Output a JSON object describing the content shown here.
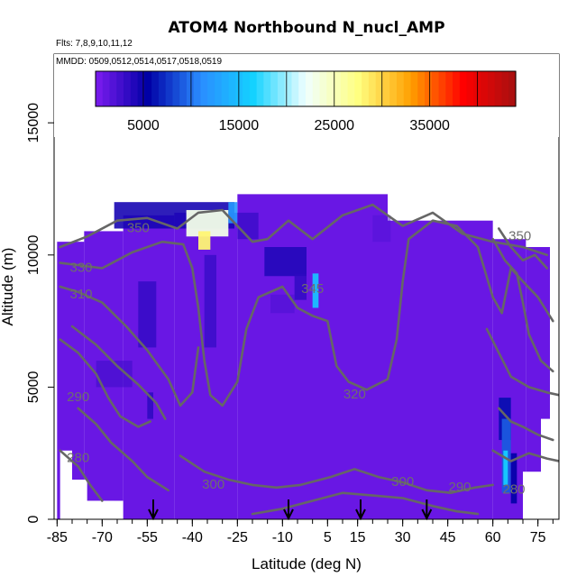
{
  "chart_data": {
    "type": "heatmap",
    "title": "ATOM4 Northbound N_nucl_AMP",
    "flights_note": "Flts: 7,8,9,10,11,12",
    "dates_note": "MMDD: 0509,0512,0514,0517,0518,0519",
    "xlabel": "Latitude (deg N)",
    "ylabel": "Altitude (m)",
    "xlim": [
      -86,
      82
    ],
    "ylim": [
      0,
      17600
    ],
    "x_ticks": [
      -85,
      -70,
      -55,
      -40,
      -25,
      -10,
      5,
      15,
      30,
      45,
      60,
      75
    ],
    "x_minor_step": 5,
    "y_ticks": [
      0,
      5000,
      10000,
      15000
    ],
    "colorbar": {
      "range": [
        0,
        44000
      ],
      "tick_values": [
        5000,
        15000,
        25000,
        35000
      ],
      "tick_labels": [
        "5000",
        "15000",
        "25000",
        "35000"
      ],
      "colors": [
        "#7d1cf0",
        "#0000a6",
        "#2a8cff",
        "#14d2ff",
        "#f0ffff",
        "#ffff80",
        "#ffa000",
        "#ff0000",
        "#a61010"
      ]
    },
    "background_value": 900,
    "arrows_lat": [
      -53,
      -8,
      16,
      38
    ],
    "contour_labels": [
      {
        "text": "350",
        "lat": -58,
        "alt": 11000
      },
      {
        "text": "330",
        "lat": -77,
        "alt": 9500
      },
      {
        "text": "310",
        "lat": -77,
        "alt": 8500
      },
      {
        "text": "345",
        "lat": 0,
        "alt": 8700
      },
      {
        "text": "350",
        "lat": 69,
        "alt": 10700
      },
      {
        "text": "290",
        "lat": -78,
        "alt": 4600
      },
      {
        "text": "320",
        "lat": 14,
        "alt": 4700
      },
      {
        "text": "280",
        "lat": -78,
        "alt": 2300
      },
      {
        "text": "300",
        "lat": -33,
        "alt": 1300
      },
      {
        "text": "300",
        "lat": 30,
        "alt": 1400
      },
      {
        "text": "290",
        "lat": 49,
        "alt": 1200
      },
      {
        "text": "280",
        "lat": 67,
        "alt": 1100
      }
    ],
    "contours": [
      [
        [
          -84,
          10300
        ],
        [
          -75,
          10700
        ],
        [
          -65,
          11300
        ],
        [
          -55,
          11400
        ],
        [
          -45,
          11000
        ],
        [
          -38,
          11600
        ],
        [
          -30,
          11700
        ],
        [
          -25,
          11100
        ]
      ],
      [
        [
          -25,
          11100
        ],
        [
          -20,
          10500
        ],
        [
          -15,
          10600
        ],
        [
          -8,
          11300
        ],
        [
          0,
          10600
        ],
        [
          10,
          11500
        ],
        [
          20,
          11900
        ],
        [
          30,
          11100
        ],
        [
          40,
          11600
        ],
        [
          50,
          10800
        ],
        [
          60,
          10500
        ],
        [
          70,
          10300
        ],
        [
          78,
          10000
        ]
      ],
      [
        [
          -84,
          9700
        ],
        [
          -70,
          9500
        ],
        [
          -60,
          10100
        ],
        [
          -50,
          10500
        ],
        [
          -43,
          10400
        ],
        [
          -40,
          9500
        ],
        [
          -38,
          8000
        ],
        [
          -36,
          6000
        ],
        [
          -34,
          4700
        ],
        [
          -30,
          4300
        ],
        [
          -25,
          5200
        ],
        [
          -22,
          7200
        ],
        [
          -18,
          8400
        ],
        [
          -10,
          8800
        ],
        [
          -5,
          8000
        ],
        [
          0,
          7700
        ]
      ],
      [
        [
          0,
          7700
        ],
        [
          5,
          7500
        ],
        [
          8,
          5800
        ],
        [
          12,
          5200
        ],
        [
          18,
          4900
        ],
        [
          25,
          5300
        ],
        [
          28,
          6800
        ],
        [
          30,
          9000
        ],
        [
          32,
          10600
        ],
        [
          40,
          11300
        ],
        [
          48,
          11100
        ],
        [
          55,
          10300
        ],
        [
          60,
          8400
        ],
        [
          63,
          7800
        ],
        [
          66,
          9500
        ],
        [
          70,
          9000
        ],
        [
          75,
          8400
        ],
        [
          80,
          7500
        ]
      ],
      [
        [
          -84,
          8800
        ],
        [
          -78,
          8600
        ],
        [
          -70,
          8200
        ],
        [
          -62,
          7300
        ],
        [
          -55,
          6400
        ],
        [
          -48,
          5300
        ],
        [
          -44,
          4300
        ],
        [
          -40,
          4800
        ],
        [
          -38,
          6500
        ]
      ],
      [
        [
          -80,
          7300
        ],
        [
          -72,
          6600
        ],
        [
          -65,
          5800
        ],
        [
          -58,
          5100
        ],
        [
          -52,
          4400
        ],
        [
          -49,
          3800
        ]
      ],
      [
        [
          -84,
          6800
        ],
        [
          -78,
          6300
        ],
        [
          -72,
          5500
        ],
        [
          -68,
          4600
        ],
        [
          -64,
          3900
        ],
        [
          -58,
          3500
        ],
        [
          -54,
          3700
        ]
      ],
      [
        [
          -78,
          4200
        ],
        [
          -72,
          3600
        ],
        [
          -67,
          2900
        ],
        [
          -60,
          2200
        ],
        [
          -55,
          1600
        ],
        [
          -48,
          1100
        ]
      ],
      [
        [
          -84,
          2600
        ],
        [
          -78,
          2000
        ],
        [
          -74,
          1300
        ],
        [
          -70,
          700
        ]
      ],
      [
        [
          -44,
          2400
        ],
        [
          -36,
          1800
        ],
        [
          -28,
          1500
        ],
        [
          -20,
          1300
        ],
        [
          -12,
          1200
        ],
        [
          -4,
          1300
        ],
        [
          6,
          1600
        ],
        [
          14,
          1900
        ],
        [
          22,
          1600
        ],
        [
          30,
          1400
        ],
        [
          38,
          1100
        ],
        [
          46,
          1000
        ],
        [
          54,
          1200
        ],
        [
          60,
          1300
        ]
      ],
      [
        [
          -20,
          200
        ],
        [
          -10,
          400
        ],
        [
          0,
          700
        ],
        [
          10,
          1000
        ],
        [
          20,
          900
        ],
        [
          30,
          800
        ],
        [
          40,
          500
        ],
        [
          48,
          300
        ],
        [
          55,
          200
        ]
      ],
      [
        [
          60,
          2600
        ],
        [
          66,
          2200
        ],
        [
          72,
          2500
        ],
        [
          78,
          2300
        ],
        [
          82,
          2200
        ]
      ],
      [
        [
          62,
          4200
        ],
        [
          66,
          3700
        ],
        [
          70,
          3500
        ],
        [
          75,
          3200
        ],
        [
          80,
          3000
        ]
      ],
      [
        [
          58,
          7200
        ],
        [
          62,
          6300
        ],
        [
          66,
          5400
        ],
        [
          72,
          5000
        ],
        [
          78,
          4800
        ],
        [
          82,
          4700
        ]
      ],
      [
        [
          60,
          10600
        ],
        [
          64,
          9800
        ],
        [
          68,
          9300
        ],
        [
          70,
          8200
        ],
        [
          72,
          7000
        ],
        [
          76,
          6000
        ],
        [
          80,
          5600
        ]
      ],
      [
        [
          62,
          11000
        ],
        [
          66,
          10300
        ],
        [
          70,
          9800
        ],
        [
          74,
          10000
        ],
        [
          78,
          9500
        ]
      ]
    ],
    "features": [
      {
        "lat": [
          -66,
          -26
        ],
        "alt": [
          11000,
          12000
        ],
        "value": 4500,
        "opacity": 0.9
      },
      {
        "lat": [
          -42,
          -28
        ],
        "alt": [
          10700,
          11700
        ],
        "value": 23000,
        "opacity": 0.95
      },
      {
        "lat": [
          -38,
          -34
        ],
        "alt": [
          10200,
          10900
        ],
        "value": 28000,
        "opacity": 0.95
      },
      {
        "lat": [
          -28,
          -25
        ],
        "alt": [
          11200,
          12000
        ],
        "value": 12000,
        "opacity": 0.9
      },
      {
        "lat": [
          -25,
          -18
        ],
        "alt": [
          10600,
          11600
        ],
        "value": 3000,
        "opacity": 0.8
      },
      {
        "lat": [
          -16,
          -2
        ],
        "alt": [
          9200,
          10300
        ],
        "value": 4200,
        "opacity": 0.85
      },
      {
        "lat": [
          -6,
          -2
        ],
        "alt": [
          8300,
          9300
        ],
        "value": 3500,
        "opacity": 0.8
      },
      {
        "lat": [
          0,
          2
        ],
        "alt": [
          8000,
          9300
        ],
        "value": 15000,
        "opacity": 0.95
      },
      {
        "lat": [
          -58,
          -52
        ],
        "alt": [
          6500,
          9000
        ],
        "value": 3500,
        "opacity": 0.75
      },
      {
        "lat": [
          -36,
          -32
        ],
        "alt": [
          6500,
          10000
        ],
        "value": 3200,
        "opacity": 0.75
      },
      {
        "lat": [
          -72,
          -60
        ],
        "alt": [
          5000,
          6000
        ],
        "value": 2800,
        "opacity": 0.6
      },
      {
        "lat": [
          -55,
          -53
        ],
        "alt": [
          3800,
          4800
        ],
        "value": 3800,
        "opacity": 0.8
      },
      {
        "lat": [
          62,
          66
        ],
        "alt": [
          3000,
          4600
        ],
        "value": 6000,
        "opacity": 0.9
      },
      {
        "lat": [
          63,
          66
        ],
        "alt": [
          1000,
          3800
        ],
        "value": 9000,
        "opacity": 0.95
      },
      {
        "lat": [
          63.5,
          65
        ],
        "alt": [
          1300,
          2600
        ],
        "value": 16000,
        "opacity": 0.95
      },
      {
        "lat": [
          66,
          68
        ],
        "alt": [
          600,
          2500
        ],
        "value": 5500,
        "opacity": 0.9
      },
      {
        "lat": [
          -14,
          -6
        ],
        "alt": [
          7800,
          8500
        ],
        "value": 2200,
        "opacity": 0.55
      },
      {
        "lat": [
          20,
          26
        ],
        "alt": [
          10500,
          11500
        ],
        "value": 2000,
        "opacity": 0.5
      }
    ],
    "domain": [
      {
        "lat": [
          -85,
          -76
        ],
        "alt": [
          0,
          10500
        ]
      },
      {
        "lat": [
          -76,
          -63
        ],
        "alt": [
          700,
          10900
        ]
      },
      {
        "lat": [
          -63,
          -46
        ],
        "alt": [
          0,
          11500
        ]
      },
      {
        "lat": [
          -46,
          -25
        ],
        "alt": [
          0,
          11600
        ]
      },
      {
        "lat": [
          -25,
          25
        ],
        "alt": [
          0,
          12300
        ]
      },
      {
        "lat": [
          25,
          60
        ],
        "alt": [
          0,
          11300
        ]
      },
      {
        "lat": [
          60,
          71
        ],
        "alt": [
          0,
          10600
        ]
      },
      {
        "lat": [
          71,
          79
        ],
        "alt": [
          0,
          10300
        ]
      }
    ],
    "domain_cutouts": [
      {
        "lat": [
          -84,
          -80
        ],
        "alt": [
          0,
          2600
        ]
      },
      {
        "lat": [
          -80,
          -75
        ],
        "alt": [
          0,
          1500
        ]
      },
      {
        "lat": [
          -75,
          -66
        ],
        "alt": [
          0,
          700
        ]
      },
      {
        "lat": [
          70,
          79
        ],
        "alt": [
          0,
          1800
        ]
      },
      {
        "lat": [
          76,
          79
        ],
        "alt": [
          0,
          3800
        ]
      }
    ]
  }
}
